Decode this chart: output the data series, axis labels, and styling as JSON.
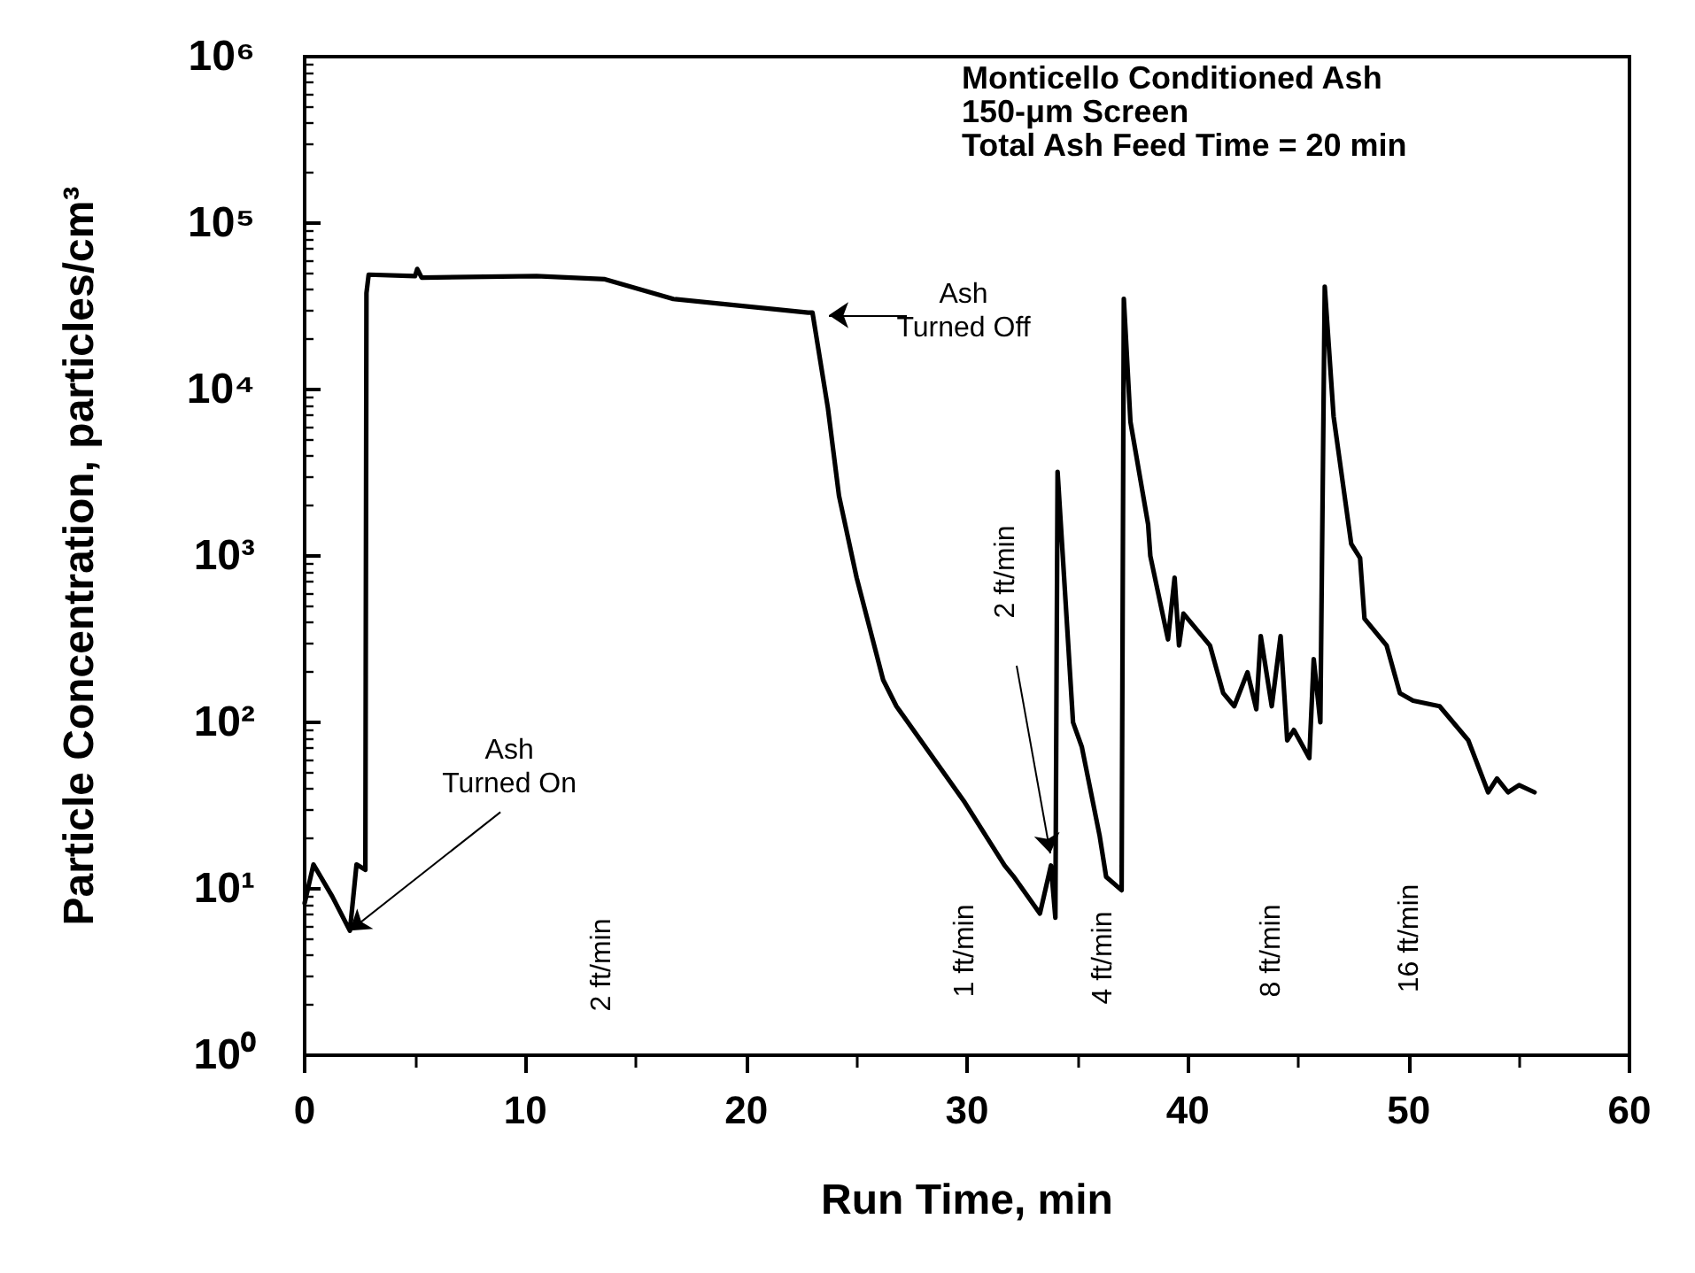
{
  "chart_data": {
    "type": "line",
    "xlabel": "Run Time, min",
    "ylabel": "Particle Concentration, particles/cm³",
    "xlim": [
      0,
      60
    ],
    "xticks": [
      0,
      10,
      20,
      30,
      40,
      50,
      60
    ],
    "ylim": [
      1,
      1000000
    ],
    "yticks": [
      {
        "value": 1,
        "label": "10⁰"
      },
      {
        "value": 10,
        "label": "10¹"
      },
      {
        "value": 100,
        "label": "10²"
      },
      {
        "value": 1000,
        "label": "10³"
      },
      {
        "value": 10000,
        "label": "10⁴"
      },
      {
        "value": 100000,
        "label": "10⁵"
      },
      {
        "value": 1000000,
        "label": "10⁶"
      }
    ],
    "log": "y",
    "grid": false,
    "marker": "none",
    "line_style": "solid",
    "series": [
      {
        "color": "#000000",
        "x": [
          0.0,
          0.4,
          1.25,
          2.05,
          2.35,
          2.75,
          2.8,
          2.9,
          5.0,
          5.1,
          5.3,
          10.5,
          13.6,
          16.7,
          22.8,
          23.0,
          23.7,
          24.2,
          25.0,
          26.2,
          26.8,
          29.9,
          31.7,
          32.1,
          33.3,
          33.8,
          34.0,
          34.1,
          34.8,
          35.2,
          36.0,
          36.3,
          37.0,
          37.1,
          37.4,
          38.2,
          38.3,
          39.1,
          39.4,
          39.6,
          39.8,
          41.0,
          41.6,
          42.1,
          42.7,
          43.1,
          43.3,
          43.8,
          44.2,
          44.5,
          44.8,
          45.5,
          45.7,
          46.0,
          46.2,
          46.6,
          47.4,
          47.8,
          48.0,
          49.0,
          49.6,
          50.2,
          51.4,
          52.7,
          53.6,
          54.0,
          54.5,
          55.0,
          55.7
        ],
        "values": [
          8.2,
          14,
          9,
          5.6,
          14,
          13,
          38000,
          49000,
          48000,
          53000,
          47000,
          48000,
          46000,
          35000,
          29000,
          29000,
          7700,
          2300,
          740,
          180,
          125,
          33,
          13.8,
          11.9,
          7.1,
          13.8,
          6.7,
          3200,
          100,
          71,
          21,
          11.8,
          9.8,
          35000,
          6400,
          1550,
          1000,
          315,
          740,
          290,
          450,
          290,
          150,
          125,
          200,
          120,
          330,
          125,
          330,
          78,
          90,
          61,
          240,
          100,
          41500,
          6900,
          1180,
          970,
          420,
          290,
          150,
          135,
          125,
          78,
          38,
          46,
          38,
          42,
          38
        ]
      }
    ],
    "annotations": [
      "Monticello Conditioned Ash",
      "150-μm Screen",
      "Total Ash Feed Time = 20 min",
      {
        "text": "Ash\nTurned On",
        "x": 2.05,
        "y": 5.6
      },
      "Ash\nTurned Off",
      "2 ft/min",
      "2 ft/min",
      "1 ft/min",
      "4 ft/min",
      "8 ft/min",
      "16 ft/min"
    ]
  }
}
